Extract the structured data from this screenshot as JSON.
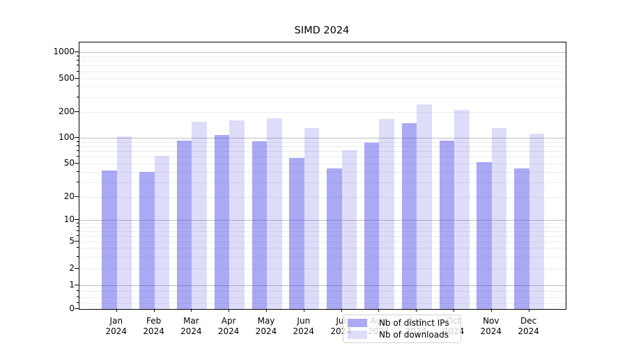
{
  "title": "SIMD 2024",
  "chart_data": {
    "type": "bar",
    "title": "SIMD 2024",
    "categories": [
      "Jan",
      "Feb",
      "Mar",
      "Apr",
      "May",
      "Jun",
      "Jul",
      "Aug",
      "Sep",
      "Oct",
      "Nov",
      "Dec"
    ],
    "category_year": "2024",
    "series": [
      {
        "name": "Nb of distinct IPs",
        "color": "#4040e6",
        "alpha": 0.45,
        "values": [
          41,
          40,
          93,
          108,
          91,
          58,
          44,
          88,
          148,
          92,
          52,
          44
        ]
      },
      {
        "name": "Nb of downloads",
        "color": "#4040e6",
        "alpha": 0.18,
        "values": [
          104,
          62,
          155,
          160,
          168,
          130,
          71,
          165,
          245,
          210,
          130,
          112
        ]
      }
    ],
    "yscale": "symlog",
    "y_ticks": [
      1000,
      500,
      200,
      100,
      50,
      20,
      10,
      5,
      2,
      1,
      0
    ],
    "ylim": [
      0,
      1300
    ],
    "grid": "both",
    "legend_position": "lower center",
    "axis_color": "#000000",
    "major_grid_color": "#bdbdbd",
    "minor_grid_color": "#ececec"
  }
}
